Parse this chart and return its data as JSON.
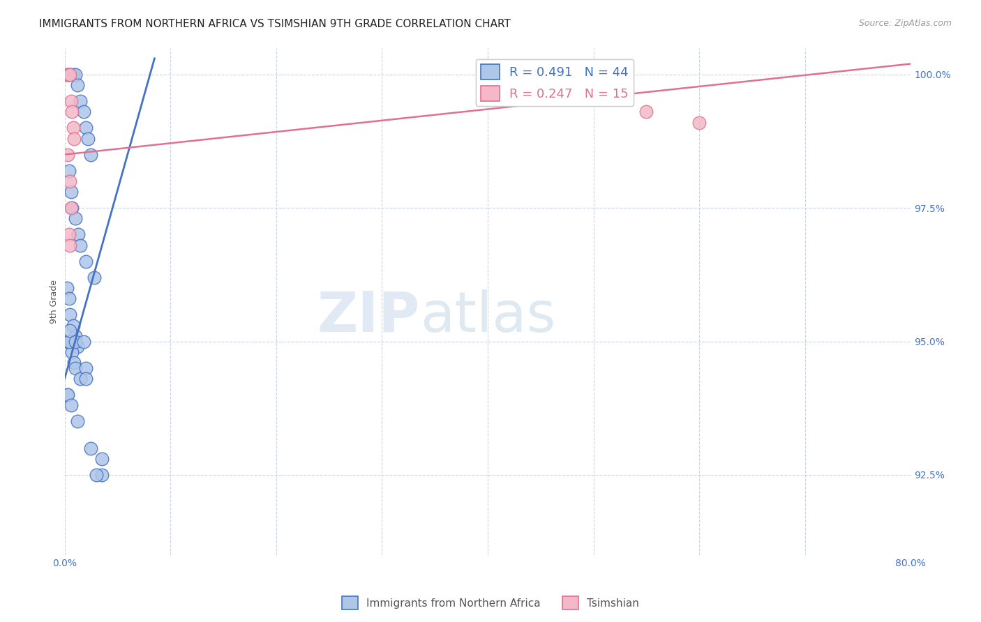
{
  "title": "IMMIGRANTS FROM NORTHERN AFRICA VS TSIMSHIAN 9TH GRADE CORRELATION CHART",
  "source": "Source: ZipAtlas.com",
  "ylabel": "9th Grade",
  "xlim": [
    0.0,
    80.0
  ],
  "ylim": [
    91.0,
    100.5
  ],
  "yticks": [
    92.5,
    95.0,
    97.5,
    100.0
  ],
  "yticklabels": [
    "92.5%",
    "95.0%",
    "97.5%",
    "100.0%"
  ],
  "blue_color": "#aec6e8",
  "pink_color": "#f4b8c8",
  "blue_line_color": "#4472c4",
  "pink_line_color": "#e07090",
  "legend_blue_label": "R = 0.491   N = 44",
  "legend_pink_label": "R = 0.247   N = 15",
  "legend1_label": "Immigrants from Northern Africa",
  "legend2_label": "Tsimshian",
  "blue_points_x": [
    0.3,
    0.5,
    0.8,
    1.0,
    1.2,
    1.5,
    1.8,
    2.0,
    2.2,
    2.5,
    0.4,
    0.6,
    0.7,
    1.0,
    1.3,
    1.5,
    2.0,
    2.8,
    0.2,
    0.4,
    0.5,
    0.8,
    1.0,
    1.2,
    0.3,
    0.6,
    0.7,
    0.9,
    1.0,
    1.5,
    0.2,
    0.4,
    0.5,
    1.0,
    1.8,
    2.0,
    0.3,
    0.6,
    1.2,
    2.5,
    3.5,
    3.5,
    2.0,
    3.0
  ],
  "blue_points_y": [
    100.0,
    100.0,
    100.0,
    100.0,
    99.8,
    99.5,
    99.3,
    99.0,
    98.8,
    98.5,
    98.2,
    97.8,
    97.5,
    97.3,
    97.0,
    96.8,
    96.5,
    96.2,
    96.0,
    95.8,
    95.5,
    95.3,
    95.1,
    94.9,
    95.0,
    95.0,
    94.8,
    94.6,
    94.5,
    94.3,
    94.0,
    95.0,
    95.2,
    95.0,
    95.0,
    94.5,
    94.0,
    93.8,
    93.5,
    93.0,
    92.8,
    92.5,
    94.3,
    92.5
  ],
  "pink_points_x": [
    0.2,
    0.3,
    0.4,
    0.5,
    0.6,
    0.7,
    0.8,
    0.9,
    0.3,
    0.5,
    0.6,
    0.4,
    0.5,
    55.0,
    60.0
  ],
  "pink_points_y": [
    100.0,
    100.0,
    100.0,
    100.0,
    99.5,
    99.3,
    99.0,
    98.8,
    98.5,
    98.0,
    97.5,
    97.0,
    96.8,
    99.3,
    99.1
  ],
  "blue_trendline_x": [
    0.0,
    8.5
  ],
  "blue_trendline_y": [
    94.3,
    100.3
  ],
  "pink_trendline_x": [
    0.0,
    80.0
  ],
  "pink_trendline_y": [
    98.5,
    100.2
  ],
  "title_fontsize": 11,
  "tick_fontsize": 10,
  "ylabel_fontsize": 9,
  "source_fontsize": 9,
  "legend_fontsize": 13
}
